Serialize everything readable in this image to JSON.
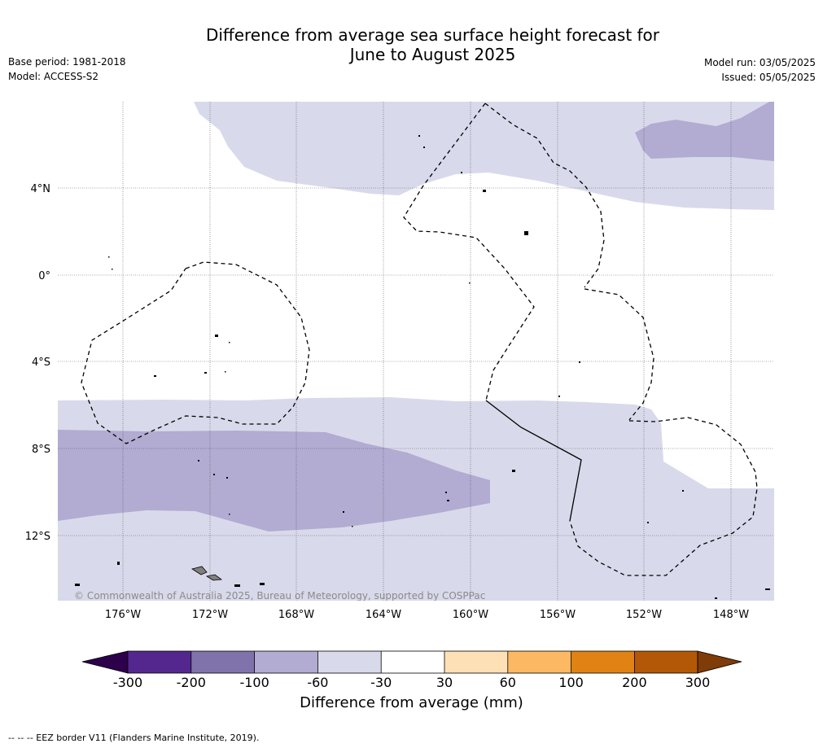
{
  "title_line1": "Difference from average sea surface height forecast for",
  "title_line2": "June to August 2025",
  "base_period": "Base period: 1981-2018",
  "model": "Model: ACCESS-S2",
  "model_run": "Model run: 03/05/2025",
  "issued": "Issued: 05/05/2025",
  "copyright": "© Commonwealth of Australia 2025, Bureau of Meteorology, supported by COSPPac",
  "lat_labels": [
    "4°N",
    "0°",
    "4°S",
    "8°S",
    "12°S"
  ],
  "lon_labels": [
    "176°W",
    "172°W",
    "168°W",
    "164°W",
    "160°W",
    "156°W",
    "152°W",
    "148°W"
  ],
  "colorbar": {
    "ticks": [
      "-300",
      "-200",
      "-100",
      "-60",
      "-30",
      "30",
      "60",
      "100",
      "200",
      "300"
    ],
    "colors": [
      "#54278f",
      "#8073ac",
      "#b2abd2",
      "#d8daeb",
      "#ffffff",
      "#fee0b6",
      "#fdb863",
      "#e08214",
      "#b35806"
    ],
    "extend_low_color": "#2d004b",
    "extend_high_color": "#7f3b08",
    "label": "Difference from average (mm)"
  },
  "footnote": "--  --  -- EEZ border V11 (Flanders Marine Institute, 2019)."
}
